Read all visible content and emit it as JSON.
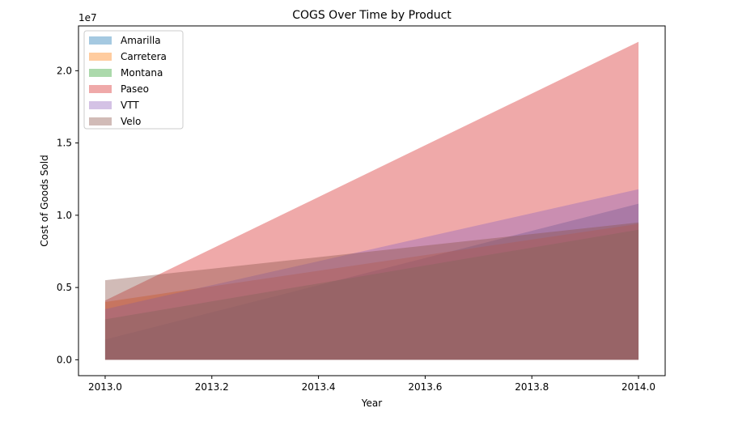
{
  "chart_data": {
    "type": "area",
    "title": "COGS Over Time by Product",
    "xlabel": "Year",
    "ylabel": "Cost of Goods Sold",
    "y_offset_label": "1e7",
    "x": [
      2013.0,
      2014.0
    ],
    "xlim": [
      2012.95,
      2014.05
    ],
    "ylim": [
      -1100000,
      23100000
    ],
    "x_ticks": [
      "2013.0",
      "2013.2",
      "2013.4",
      "2013.6",
      "2013.8",
      "2014.0"
    ],
    "x_tick_values": [
      2013.0,
      2013.2,
      2013.4,
      2013.6,
      2013.8,
      2014.0
    ],
    "y_ticks": [
      "0.0",
      "0.5",
      "1.0",
      "1.5",
      "2.0"
    ],
    "y_tick_values": [
      0,
      5000000,
      10000000,
      15000000,
      20000000
    ],
    "legend_position": "top-left",
    "grid": false,
    "alpha": 0.4,
    "series": [
      {
        "name": "Amarilla",
        "color": "#1f77b4",
        "values": [
          1400000,
          10800000
        ]
      },
      {
        "name": "Carretera",
        "color": "#ff7f0e",
        "values": [
          4000000,
          9400000
        ]
      },
      {
        "name": "Montana",
        "color": "#2ca02c",
        "values": [
          2800000,
          9000000
        ]
      },
      {
        "name": "Paseo",
        "color": "#d62728",
        "values": [
          4100000,
          22000000
        ]
      },
      {
        "name": "VTT",
        "color": "#9467bd",
        "values": [
          3500000,
          11800000
        ]
      },
      {
        "name": "Velo",
        "color": "#8c564b",
        "values": [
          5500000,
          9500000
        ]
      }
    ]
  }
}
